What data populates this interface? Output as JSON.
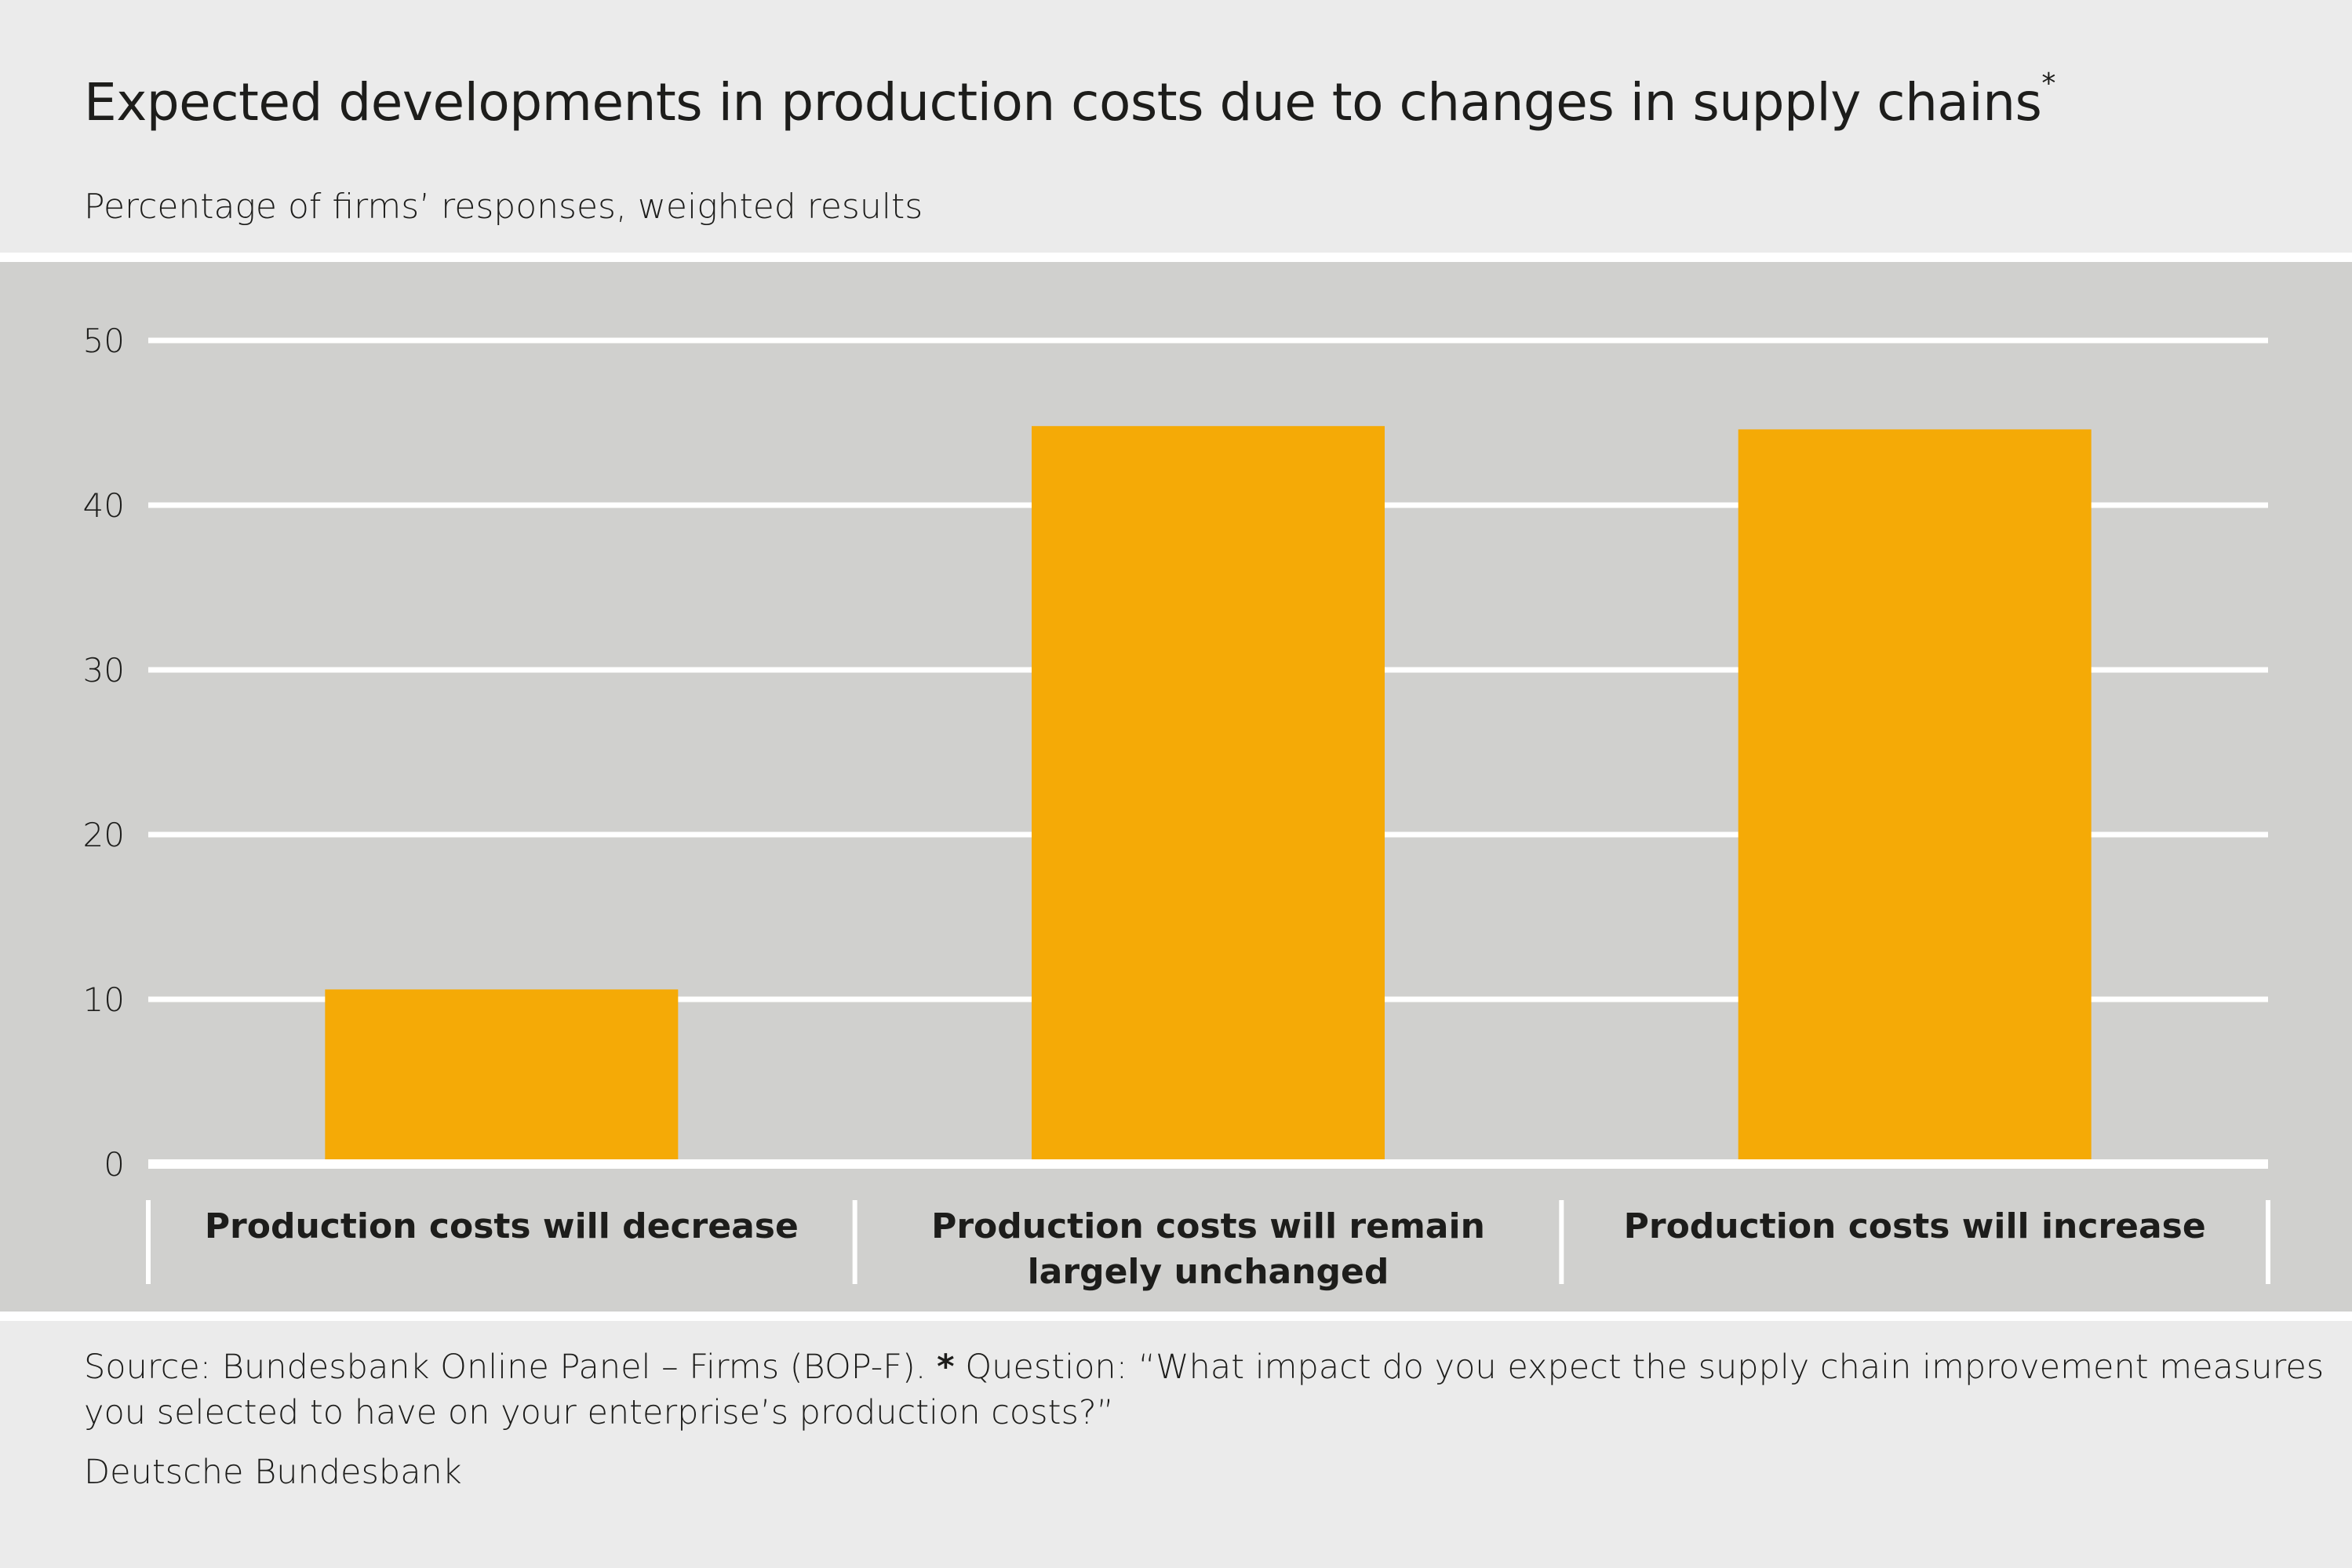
{
  "title": "Expected developments in production costs due to changes in supply chains",
  "title_marker": "*",
  "subtitle": "Percentage of firms’ responses, weighted results",
  "chart_data": {
    "type": "bar",
    "title": "Expected developments in production costs due to changes in supply chains",
    "categories": [
      [
        "Production costs will decrease"
      ],
      [
        "Production costs will remain",
        "largely unchanged"
      ],
      [
        "Production costs will increase"
      ]
    ],
    "values": [
      10.6,
      44.8,
      44.6
    ],
    "ylim": [
      0,
      50
    ],
    "yticks": [
      0,
      10,
      20,
      30,
      40,
      50
    ],
    "grid": true,
    "bar_color": "#f5aa06",
    "plot_background": "#d0d0ce",
    "gridline_color": "#ffffff"
  },
  "footer": {
    "source_prefix": "Source: Bundesbank Online Panel – Firms (BOP-F).",
    "question_marker": "*",
    "question_line1": "Question: “What impact do you expect the supply chain improvement measures",
    "question_line2": "you selected to have on your enterprise’s production costs?”",
    "publisher": "Deutsche Bundesbank"
  }
}
